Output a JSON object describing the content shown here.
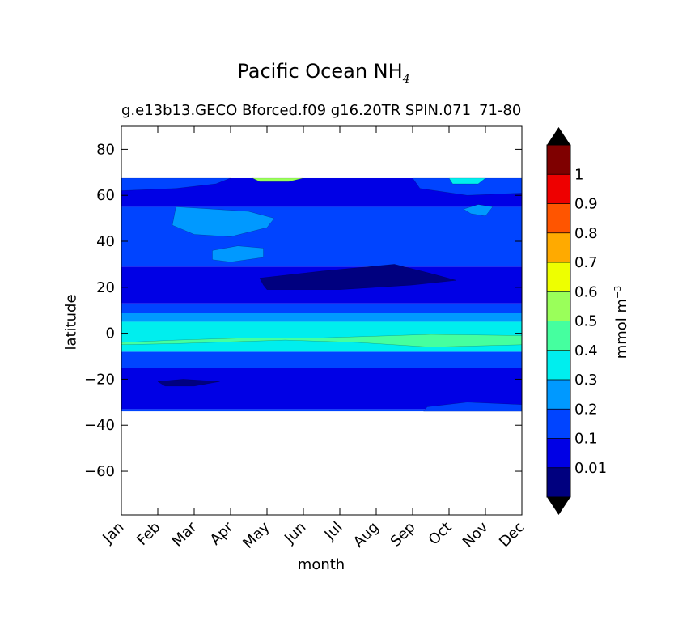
{
  "chart_data": {
    "type": "heatmap",
    "title": "Pacific Ocean NH",
    "title_subscript": "4",
    "subtitle": "g.e13b13.GECO Bforced.f09 g16.20TR SPIN.071",
    "subtitle_right": "71-80",
    "xlabel": "month",
    "ylabel": "latitude",
    "x_ticks": [
      "Jan",
      "Feb",
      "Mar",
      "Apr",
      "May",
      "Jun",
      "Jul",
      "Aug",
      "Sep",
      "Oct",
      "Nov",
      "Dec"
    ],
    "y_ticks": [
      80,
      60,
      40,
      20,
      0,
      -20,
      -40,
      -60
    ],
    "ylim": [
      -79,
      90
    ],
    "xlim": [
      0,
      11
    ],
    "data_lat_range": [
      -34,
      67.5
    ],
    "colorbar": {
      "label": "mmol m",
      "label_superscript": "−3",
      "levels": [
        0,
        0.01,
        0.1,
        0.2,
        0.3,
        0.4,
        0.5,
        0.6,
        0.7,
        0.8,
        0.9,
        1,
        1.1
      ],
      "tick_labels": [
        "0.01",
        "0.1",
        "0.2",
        "0.3",
        "0.4",
        "0.5",
        "0.6",
        "0.7",
        "0.8",
        "0.9",
        "1"
      ],
      "colors": [
        "#00007f",
        "#0000e5",
        "#0044ff",
        "#0099ff",
        "#00eeee",
        "#45ff9f",
        "#9aff5a",
        "#eeff00",
        "#ffaa00",
        "#ff5500",
        "#ee0000",
        "#7f0000"
      ],
      "extend": "both",
      "under_color": "#000000",
      "over_color": "#000000"
    },
    "bands": [
      {
        "lat": [
          -34,
          -33
        ],
        "value": 0.15
      },
      {
        "lat": [
          -33,
          -15
        ],
        "value": 0.05
      },
      {
        "lat": [
          -15,
          -8
        ],
        "value": 0.15
      },
      {
        "lat": [
          -8,
          5
        ],
        "value": 0.35
      },
      {
        "lat": [
          5,
          9
        ],
        "value": 0.25
      },
      {
        "lat": [
          9,
          13
        ],
        "value": 0.15
      },
      {
        "lat": [
          13,
          29
        ],
        "value": 0.05
      },
      {
        "lat": [
          29,
          55
        ],
        "value": 0.15
      },
      {
        "lat": [
          55,
          67.5
        ],
        "value": 0.05
      }
    ],
    "patches": [
      {
        "x": [
          0,
          3.5,
          7.0,
          7.0,
          11,
          11
        ],
        "xs": [
          0,
          3.5,
          5.3,
          7.0,
          9.0,
          11
        ],
        "lat_shape": "poly",
        "value": 0.45,
        "points": [
          [
            0,
            -4
          ],
          [
            1.5,
            -3
          ],
          [
            3.5,
            -2
          ],
          [
            5.5,
            -2
          ],
          [
            7.5,
            -1
          ],
          [
            8.5,
            -0.5
          ],
          [
            11,
            -1
          ],
          [
            11,
            -5
          ],
          [
            8.5,
            -6
          ],
          [
            6.5,
            -4
          ],
          [
            4.5,
            -3
          ],
          [
            1.5,
            -4.5
          ],
          [
            0,
            -5
          ]
        ]
      },
      {
        "value": 0.2,
        "points": [
          [
            1.5,
            55
          ],
          [
            2.5,
            54
          ],
          [
            3.5,
            53
          ],
          [
            4.2,
            50
          ],
          [
            4.0,
            46
          ],
          [
            3.0,
            42
          ],
          [
            2.0,
            43
          ],
          [
            1.4,
            47
          ]
        ]
      },
      {
        "value": 0.2,
        "points": [
          [
            2.5,
            36
          ],
          [
            3.2,
            38
          ],
          [
            3.9,
            37
          ],
          [
            3.9,
            33
          ],
          [
            3.0,
            31
          ],
          [
            2.5,
            32
          ]
        ]
      },
      {
        "value": 0.2,
        "points": [
          [
            9.4,
            54
          ],
          [
            9.8,
            56
          ],
          [
            10.2,
            55
          ],
          [
            10.0,
            51
          ],
          [
            9.6,
            52
          ]
        ]
      },
      {
        "value": 0.0,
        "points": [
          [
            3.8,
            24
          ],
          [
            5.5,
            27
          ],
          [
            7.5,
            30
          ],
          [
            8.5,
            26
          ],
          [
            9.2,
            23
          ],
          [
            8.0,
            21
          ],
          [
            6.0,
            19
          ],
          [
            4.0,
            19
          ],
          [
            3.9,
            21
          ]
        ]
      },
      {
        "value": 0.0,
        "points": [
          [
            1.0,
            -21
          ],
          [
            1.7,
            -20
          ],
          [
            2.7,
            -21
          ],
          [
            2.0,
            -23
          ],
          [
            1.2,
            -23
          ]
        ]
      },
      {
        "value": 0.15,
        "points": [
          [
            0,
            67.5
          ],
          [
            3.0,
            67.5
          ],
          [
            2.6,
            65
          ],
          [
            1.5,
            63
          ],
          [
            0,
            62
          ]
        ]
      },
      {
        "value": 0.15,
        "points": [
          [
            8.0,
            67.5
          ],
          [
            11,
            67.5
          ],
          [
            11,
            61
          ],
          [
            9.5,
            60
          ],
          [
            8.2,
            63
          ]
        ]
      },
      {
        "value": 0.15,
        "points": [
          [
            8.3,
            -34
          ],
          [
            11,
            -34
          ],
          [
            11,
            -31
          ],
          [
            9.5,
            -30
          ],
          [
            8.4,
            -32
          ]
        ]
      },
      {
        "value": 0.35,
        "points": [
          [
            9.0,
            67.5
          ],
          [
            10.0,
            67.5
          ],
          [
            9.8,
            65
          ],
          [
            9.1,
            65
          ]
        ]
      },
      {
        "value": 0.55,
        "points": [
          [
            3.6,
            67.5
          ],
          [
            5.0,
            67.5
          ],
          [
            4.6,
            66
          ],
          [
            3.8,
            66
          ]
        ]
      }
    ]
  }
}
